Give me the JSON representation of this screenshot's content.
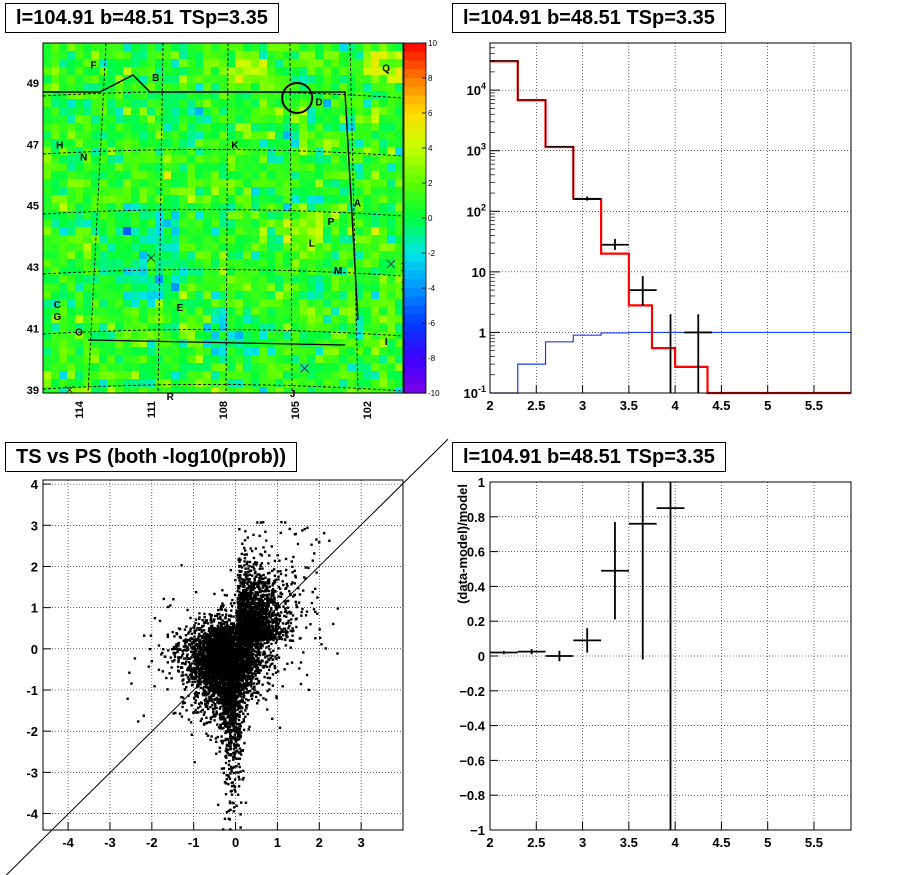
{
  "chart_data": [
    {
      "panel": "skymap",
      "type": "heatmap",
      "title": "l=104.91 b=48.51 TSp=3.35",
      "x_ticks": [
        "114",
        "111",
        "108",
        "105",
        "102"
      ],
      "y_ticks": [
        "39",
        "41",
        "43",
        "45",
        "47",
        "49"
      ],
      "xlim": [
        100.5,
        115.5
      ],
      "ylim": [
        38.9,
        50.3
      ],
      "colorbar": {
        "min": -10,
        "max": 10,
        "ticks": [
          "-10",
          "-8",
          "-6",
          "-4",
          "-2",
          "0",
          "2",
          "4",
          "6",
          "8",
          "10"
        ]
      },
      "source_labels": [
        {
          "text": "F",
          "l": 113.4,
          "b": 49.6
        },
        {
          "text": "B",
          "l": 110.8,
          "b": 49.2
        },
        {
          "text": "D",
          "l": 104.0,
          "b": 48.4
        },
        {
          "text": "Q",
          "l": 101.2,
          "b": 49.5
        },
        {
          "text": "H",
          "l": 114.8,
          "b": 47.0
        },
        {
          "text": "K",
          "l": 107.5,
          "b": 47.0
        },
        {
          "text": "N",
          "l": 113.8,
          "b": 46.6
        },
        {
          "text": "A",
          "l": 102.4,
          "b": 45.1
        },
        {
          "text": "P",
          "l": 103.5,
          "b": 44.5
        },
        {
          "text": "L",
          "l": 104.3,
          "b": 43.8
        },
        {
          "text": "M",
          "l": 103.2,
          "b": 42.9
        },
        {
          "text": "C",
          "l": 114.9,
          "b": 41.8
        },
        {
          "text": "G",
          "l": 114.9,
          "b": 41.4
        },
        {
          "text": "E",
          "l": 109.8,
          "b": 41.7
        },
        {
          "text": "O",
          "l": 114.0,
          "b": 40.9
        },
        {
          "text": "I",
          "l": 101.2,
          "b": 40.6
        },
        {
          "text": "R",
          "l": 110.2,
          "b": 38.8
        },
        {
          "text": "J",
          "l": 105.1,
          "b": 38.9
        }
      ],
      "crosses": [
        {
          "l": 111.0,
          "b": 43.3
        },
        {
          "l": 114.4,
          "b": 39.0
        },
        {
          "l": 104.6,
          "b": 39.7
        },
        {
          "l": 101.0,
          "b": 43.1
        },
        {
          "l": 100.4,
          "b": 43.0
        },
        {
          "l": 100.4,
          "b": 42.4
        }
      ],
      "circle": {
        "l": 104.91,
        "b": 48.51
      }
    },
    {
      "panel": "spectrum",
      "type": "line",
      "title": "l=104.91 b=48.51 TSp=3.35",
      "xlim": [
        2.0,
        5.9
      ],
      "ylim": [
        0.1,
        60000
      ],
      "yscale": "log",
      "grid": true,
      "x_ticks": [
        "2",
        "2.5",
        "3",
        "3.5",
        "4",
        "4.5",
        "5",
        "5.5"
      ],
      "y_ticks": [
        "10^-1",
        "1",
        "10",
        "10^2",
        "10^3",
        "10^4"
      ],
      "model_red": {
        "edges": [
          2.0,
          2.3,
          2.6,
          2.9,
          3.2,
          3.5,
          3.75,
          4.0,
          4.35,
          5.9
        ],
        "values": [
          30000,
          6800,
          1150,
          160,
          20,
          2.8,
          0.55,
          0.27,
          0.1
        ]
      },
      "model_blue": {
        "edges": [
          2.0,
          2.3,
          2.6,
          2.9,
          3.2,
          3.5,
          3.75,
          4.0,
          4.35,
          5.9
        ],
        "values": [
          0.1,
          0.3,
          0.7,
          0.9,
          0.98,
          1.0,
          1.0,
          1.0,
          1.0
        ]
      },
      "data_points": [
        {
          "x": 3.05,
          "y": 160,
          "xerr": 0.15,
          "ylo": 150,
          "yhi": 175
        },
        {
          "x": 3.35,
          "y": 28,
          "xerr": 0.15,
          "ylo": 23,
          "yhi": 35
        },
        {
          "x": 3.65,
          "y": 5,
          "xerr": 0.15,
          "ylo": 2.8,
          "yhi": 8.5
        },
        {
          "x": 3.95,
          "y": 1,
          "xerr": 0,
          "ylo": 0.1,
          "yhi": 2
        },
        {
          "x": 4.25,
          "y": 1,
          "xerr": 0.15,
          "ylo": 0.1,
          "yhi": 2
        }
      ]
    },
    {
      "panel": "scatter",
      "type": "scatter",
      "title": "TS vs PS (both -log10(prob))",
      "xlim": [
        -4.6,
        4.0
      ],
      "ylim": [
        -4.4,
        4.1
      ],
      "grid": true,
      "x_ticks": [
        "-4",
        "-3",
        "-2",
        "-1",
        "0",
        "1",
        "2",
        "3"
      ],
      "y_ticks": [
        "-4",
        "-3",
        "-2",
        "-1",
        "0",
        "1",
        "2",
        "3",
        "4"
      ],
      "diagonal": true
    },
    {
      "panel": "residual",
      "type": "scatter",
      "title": "l=104.91 b=48.51 TSp=3.35",
      "ylabel": "(data-model)/model",
      "xlim": [
        2.0,
        5.9
      ],
      "ylim": [
        -1,
        1
      ],
      "grid": true,
      "x_ticks": [
        "2",
        "2.5",
        "3",
        "3.5",
        "4",
        "4.5",
        "5",
        "5.5"
      ],
      "y_ticks": [
        "-1",
        "-0.8",
        "-0.6",
        "-0.4",
        "-0.2",
        "0",
        "0.2",
        "0.4",
        "0.6",
        "0.8",
        "1"
      ],
      "points": [
        {
          "x": 2.15,
          "y": 0.02,
          "xerr": 0.15,
          "yerr": 0.01
        },
        {
          "x": 2.45,
          "y": 0.025,
          "xerr": 0.15,
          "yerr": 0.015
        },
        {
          "x": 2.75,
          "y": 0.0,
          "xerr": 0.15,
          "yerr": 0.03
        },
        {
          "x": 3.05,
          "y": 0.09,
          "xerr": 0.15,
          "yerr": 0.07
        },
        {
          "x": 3.35,
          "y": 0.49,
          "xerr": 0.15,
          "yerr": 0.28
        },
        {
          "x": 3.65,
          "y": 0.76,
          "xerr": 0.15,
          "yerr": 0.78
        },
        {
          "x": 3.95,
          "y": 0.85,
          "xerr": 0.15,
          "yerr": 1.9
        }
      ]
    }
  ]
}
